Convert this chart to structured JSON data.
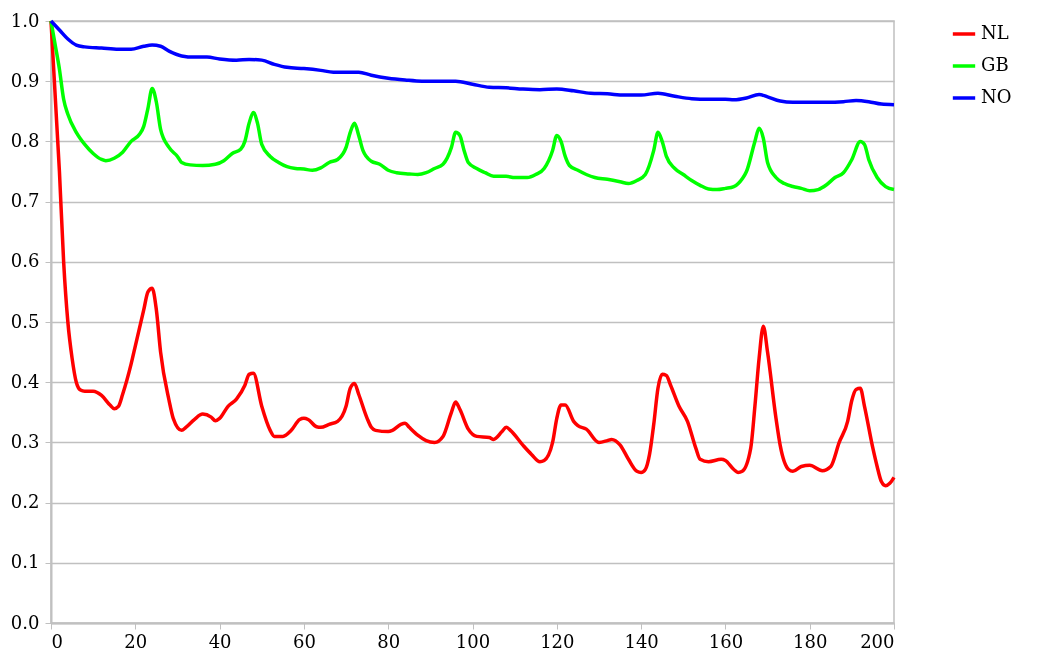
{
  "chart_data": {
    "type": "line",
    "xlim": [
      0,
      200
    ],
    "xticks": [
      0,
      20,
      40,
      60,
      80,
      100,
      120,
      140,
      160,
      180,
      200
    ],
    "ylim": [
      0,
      1
    ],
    "yticks": [
      {
        "value": 0,
        "label": "0.0"
      },
      0.1,
      0.2,
      0.3,
      0.4,
      0.5,
      0.6,
      0.7,
      0.8,
      0.9,
      {
        "value": 1,
        "label": "1.0"
      }
    ],
    "grid": "y",
    "legend": "right",
    "marker": "none",
    "line_style": "solid",
    "series": [
      {
        "name": "NL",
        "color": "#ff0000",
        "x": [
          0,
          2,
          3,
          4,
          5,
          6,
          7,
          8,
          10,
          12,
          14,
          15,
          16,
          17,
          19,
          20,
          22,
          23,
          24,
          25,
          26,
          28,
          29,
          31,
          32,
          34,
          36,
          38,
          39,
          40,
          42,
          44,
          46,
          47,
          48,
          50,
          52,
          53,
          55,
          57,
          59,
          60,
          61,
          63,
          64,
          66,
          68,
          70,
          71,
          72,
          73,
          75,
          76,
          77,
          80,
          81,
          83,
          84,
          85,
          87,
          89,
          91,
          93,
          95,
          96,
          97,
          99,
          101,
          104,
          105,
          107,
          108,
          109,
          112,
          114,
          116,
          117,
          119,
          120,
          121,
          122,
          124,
          125,
          127,
          130,
          132,
          133,
          135,
          137,
          139,
          140,
          141,
          142,
          143,
          144,
          145,
          146,
          147,
          149,
          151,
          153,
          154,
          156,
          159,
          160,
          162,
          163,
          164,
          166,
          167,
          168,
          169,
          170,
          172,
          173,
          175,
          176,
          178,
          180,
          183,
          185,
          187,
          189,
          190,
          191,
          192,
          193,
          195,
          196,
          197,
          198,
          199,
          200
        ],
        "values": [
          1.0,
          0.75,
          0.6,
          0.5,
          0.44,
          0.4,
          0.387,
          0.385,
          0.385,
          0.378,
          0.362,
          0.356,
          0.36,
          0.38,
          0.43,
          0.46,
          0.52,
          0.55,
          0.556,
          0.52,
          0.45,
          0.37,
          0.34,
          0.32,
          0.325,
          0.338,
          0.347,
          0.342,
          0.336,
          0.34,
          0.36,
          0.372,
          0.395,
          0.413,
          0.415,
          0.36,
          0.32,
          0.31,
          0.31,
          0.32,
          0.338,
          0.34,
          0.338,
          0.326,
          0.325,
          0.33,
          0.335,
          0.36,
          0.39,
          0.398,
          0.38,
          0.34,
          0.325,
          0.32,
          0.318,
          0.32,
          0.33,
          0.332,
          0.325,
          0.312,
          0.303,
          0.3,
          0.31,
          0.35,
          0.367,
          0.355,
          0.322,
          0.31,
          0.308,
          0.305,
          0.318,
          0.325,
          0.32,
          0.295,
          0.28,
          0.268,
          0.27,
          0.3,
          0.34,
          0.362,
          0.362,
          0.335,
          0.328,
          0.322,
          0.3,
          0.303,
          0.305,
          0.296,
          0.272,
          0.252,
          0.25,
          0.255,
          0.28,
          0.33,
          0.39,
          0.413,
          0.411,
          0.395,
          0.36,
          0.335,
          0.29,
          0.272,
          0.268,
          0.272,
          0.27,
          0.255,
          0.25,
          0.252,
          0.29,
          0.36,
          0.44,
          0.493,
          0.45,
          0.34,
          0.295,
          0.255,
          0.252,
          0.26,
          0.262,
          0.253,
          0.26,
          0.3,
          0.335,
          0.37,
          0.388,
          0.39,
          0.36,
          0.29,
          0.26,
          0.235,
          0.228,
          0.232,
          0.242
        ]
      },
      {
        "name": "GB",
        "color": "#00ff00",
        "x": [
          0,
          1,
          2,
          3,
          4,
          6,
          8,
          10,
          12,
          13,
          15,
          17,
          19,
          21,
          22,
          23,
          24,
          25,
          26,
          28,
          30,
          31,
          33,
          36,
          39,
          41,
          43,
          45,
          46,
          47,
          48,
          49,
          50,
          52,
          54,
          56,
          58,
          60,
          62,
          64,
          66,
          68,
          70,
          71,
          72,
          73,
          74,
          76,
          78,
          80,
          82,
          85,
          87,
          89,
          91,
          93,
          95,
          96,
          97,
          98,
          99,
          101,
          103,
          105,
          108,
          110,
          113,
          115,
          117,
          119,
          120,
          121,
          122,
          123,
          125,
          127,
          129,
          132,
          135,
          137,
          139,
          141,
          143,
          144,
          145,
          146,
          148,
          150,
          152,
          154,
          156,
          158,
          160,
          162,
          164,
          165,
          167,
          168,
          169,
          170,
          172,
          174,
          176,
          178,
          180,
          182,
          184,
          186,
          188,
          190,
          192,
          193,
          194,
          196,
          198,
          200
        ],
        "values": [
          1.0,
          0.96,
          0.92,
          0.87,
          0.845,
          0.815,
          0.795,
          0.78,
          0.77,
          0.768,
          0.772,
          0.782,
          0.8,
          0.812,
          0.825,
          0.855,
          0.888,
          0.865,
          0.82,
          0.79,
          0.775,
          0.765,
          0.761,
          0.76,
          0.762,
          0.768,
          0.78,
          0.787,
          0.8,
          0.83,
          0.848,
          0.83,
          0.795,
          0.775,
          0.765,
          0.758,
          0.755,
          0.754,
          0.752,
          0.756,
          0.765,
          0.77,
          0.79,
          0.815,
          0.83,
          0.81,
          0.785,
          0.767,
          0.762,
          0.752,
          0.748,
          0.746,
          0.745,
          0.748,
          0.755,
          0.762,
          0.79,
          0.815,
          0.81,
          0.785,
          0.765,
          0.755,
          0.748,
          0.742,
          0.742,
          0.74,
          0.74,
          0.745,
          0.755,
          0.785,
          0.81,
          0.8,
          0.775,
          0.76,
          0.752,
          0.745,
          0.74,
          0.737,
          0.733,
          0.73,
          0.735,
          0.745,
          0.785,
          0.815,
          0.8,
          0.775,
          0.755,
          0.745,
          0.735,
          0.727,
          0.721,
          0.72,
          0.722,
          0.725,
          0.738,
          0.75,
          0.8,
          0.822,
          0.805,
          0.765,
          0.74,
          0.73,
          0.725,
          0.722,
          0.718,
          0.72,
          0.728,
          0.74,
          0.748,
          0.77,
          0.8,
          0.795,
          0.77,
          0.74,
          0.725,
          0.72
        ]
      },
      {
        "name": "NO",
        "color": "#0000ff",
        "x": [
          0,
          2,
          4,
          6,
          8,
          12,
          16,
          19,
          22,
          24,
          26,
          28,
          31,
          34,
          37,
          40,
          44,
          47,
          50,
          53,
          56,
          60,
          64,
          67,
          70,
          73,
          76,
          80,
          84,
          88,
          92,
          96,
          100,
          104,
          108,
          112,
          116,
          120,
          124,
          128,
          132,
          136,
          140,
          144,
          148,
          152,
          156,
          160,
          162,
          165,
          168,
          170,
          173,
          176,
          180,
          184,
          188,
          191,
          194,
          197,
          200
        ],
        "values": [
          1.0,
          0.985,
          0.97,
          0.96,
          0.957,
          0.955,
          0.953,
          0.953,
          0.958,
          0.96,
          0.958,
          0.95,
          0.942,
          0.94,
          0.94,
          0.937,
          0.935,
          0.936,
          0.935,
          0.928,
          0.923,
          0.921,
          0.918,
          0.915,
          0.915,
          0.915,
          0.91,
          0.905,
          0.902,
          0.9,
          0.9,
          0.9,
          0.895,
          0.89,
          0.889,
          0.887,
          0.886,
          0.887,
          0.884,
          0.88,
          0.879,
          0.877,
          0.877,
          0.88,
          0.875,
          0.871,
          0.87,
          0.87,
          0.869,
          0.872,
          0.878,
          0.874,
          0.867,
          0.865,
          0.865,
          0.865,
          0.866,
          0.868,
          0.866,
          0.862,
          0.861
        ]
      }
    ]
  }
}
